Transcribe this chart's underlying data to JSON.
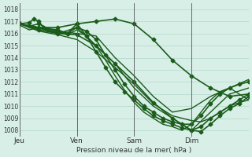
{
  "title": "",
  "xlabel": "Pression niveau de la mer( hPa )",
  "ylabel": "",
  "bg_color": "#d8efe8",
  "grid_color": "#b0d8c8",
  "line_color": "#1a5c1a",
  "ylim": [
    1007.5,
    1018.5
  ],
  "yticks": [
    1008,
    1009,
    1010,
    1011,
    1012,
    1013,
    1014,
    1015,
    1016,
    1017,
    1018
  ],
  "day_labels": [
    "Jeu",
    "Ven",
    "Sam",
    "Dim"
  ],
  "day_positions": [
    0,
    72,
    144,
    216
  ],
  "total_hours": 288,
  "lines": [
    {
      "x": [
        0,
        12,
        18,
        24,
        30,
        36,
        48,
        60,
        72,
        84,
        96,
        108,
        120,
        132,
        144,
        156,
        168,
        180,
        192,
        204,
        216,
        228,
        240,
        252,
        264,
        276,
        288
      ],
      "y": [
        1016.8,
        1016.9,
        1017.2,
        1017.0,
        1016.5,
        1016.3,
        1016.2,
        1016.0,
        1016.8,
        1015.8,
        1014.5,
        1013.2,
        1012.0,
        1011.2,
        1010.5,
        1009.8,
        1009.2,
        1008.8,
        1008.5,
        1008.2,
        1008.0,
        1008.3,
        1009.0,
        1009.5,
        1010.0,
        1010.5,
        1011.0
      ],
      "marker": true,
      "lw": 1.2
    },
    {
      "x": [
        0,
        12,
        24,
        36,
        48,
        60,
        72,
        84,
        96,
        108,
        120,
        132,
        144,
        156,
        168,
        180,
        192,
        204,
        216,
        228,
        240,
        252,
        264,
        276,
        288
      ],
      "y": [
        1016.8,
        1016.6,
        1016.8,
        1016.4,
        1016.3,
        1016.0,
        1016.5,
        1016.2,
        1015.5,
        1014.2,
        1013.0,
        1011.8,
        1010.8,
        1010.0,
        1009.5,
        1009.0,
        1008.7,
        1008.5,
        1008.5,
        1009.2,
        1010.2,
        1011.0,
        1011.5,
        1011.8,
        1012.0
      ],
      "marker": true,
      "lw": 1.2
    },
    {
      "x": [
        0,
        12,
        24,
        36,
        48,
        60,
        72,
        84,
        96,
        108,
        120,
        132,
        144,
        156,
        168,
        180,
        192,
        204,
        216,
        228,
        240,
        252,
        264,
        276,
        288
      ],
      "y": [
        1016.7,
        1016.3,
        1016.5,
        1016.2,
        1016.1,
        1015.9,
        1016.3,
        1015.8,
        1015.0,
        1013.8,
        1012.5,
        1011.3,
        1010.3,
        1009.5,
        1009.0,
        1008.5,
        1008.3,
        1008.0,
        1008.5,
        1009.5,
        1010.5,
        1011.2,
        1011.5,
        1011.0,
        1010.5
      ],
      "marker": false,
      "lw": 1.0
    },
    {
      "x": [
        0,
        24,
        48,
        72,
        96,
        120,
        144,
        168,
        192,
        216,
        240,
        264,
        288
      ],
      "y": [
        1016.8,
        1016.5,
        1016.0,
        1016.5,
        1015.0,
        1013.5,
        1011.5,
        1010.0,
        1009.0,
        1008.0,
        1009.5,
        1011.0,
        1011.5
      ],
      "marker": false,
      "lw": 1.0
    },
    {
      "x": [
        0,
        24,
        48,
        72,
        96,
        120,
        144,
        168,
        192,
        216,
        240,
        264,
        288
      ],
      "y": [
        1016.8,
        1016.4,
        1016.2,
        1016.0,
        1015.8,
        1014.0,
        1012.5,
        1010.8,
        1009.5,
        1009.8,
        1010.8,
        1011.5,
        1012.2
      ],
      "marker": false,
      "lw": 1.0
    },
    {
      "x": [
        0,
        24,
        48,
        72,
        96,
        120,
        144,
        168,
        192,
        216,
        228,
        240,
        252,
        264,
        276,
        288
      ],
      "y": [
        1016.8,
        1016.3,
        1016.0,
        1015.9,
        1015.0,
        1013.5,
        1012.0,
        1010.3,
        1009.0,
        1008.0,
        1007.9,
        1008.5,
        1009.2,
        1009.8,
        1010.2,
        1010.8
      ],
      "marker": true,
      "lw": 1.2
    },
    {
      "x": [
        0,
        24,
        48,
        72,
        96,
        120,
        144,
        168,
        192,
        204,
        216,
        228,
        240,
        252,
        264,
        276,
        288
      ],
      "y": [
        1016.8,
        1016.2,
        1015.9,
        1015.5,
        1014.5,
        1013.2,
        1011.8,
        1010.2,
        1009.2,
        1009.0,
        1008.8,
        1008.7,
        1009.0,
        1009.5,
        1010.0,
        1010.3,
        1010.5
      ],
      "marker": false,
      "lw": 1.0
    },
    {
      "x": [
        0,
        24,
        48,
        72,
        96,
        120,
        144,
        168,
        192,
        216,
        240,
        264,
        288
      ],
      "y": [
        1016.8,
        1016.5,
        1016.5,
        1016.8,
        1017.0,
        1017.2,
        1016.8,
        1015.5,
        1013.8,
        1012.5,
        1011.5,
        1010.8,
        1011.0
      ],
      "marker": true,
      "lw": 1.2
    }
  ]
}
